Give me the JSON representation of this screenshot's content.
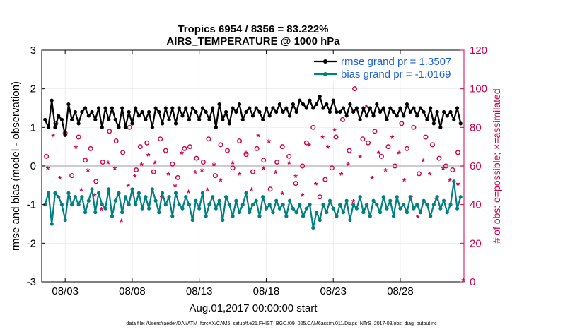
{
  "chart_data": {
    "type": "line",
    "title": "Tropics 6954 / 8356 = 83.222%",
    "subtitle": "AIRS_TEMPERATURE @ 1000 hPa",
    "ylabel_left": "rmse and bias (model - observation)",
    "ylabel_right": "# of obs: o=possible; ×=assimilated",
    "xlabel": "Aug.01,2017 00:00:00 start",
    "footnote": "data file: /Users/raeder/DAI/ATM_forcXX/CAM6_setup/f.e21.FHIST_BGC.f09_025.CAM6assim.011/Diags_NTrS_2017-08/obs_diag_output.nc",
    "ylim_left": [
      -3,
      3
    ],
    "ylim_right": [
      0,
      120
    ],
    "xlim_days": [
      0.25,
      31.75
    ],
    "yticks_left": [
      "3",
      "2",
      "1",
      "0",
      "-1",
      "-2",
      "-3"
    ],
    "yticks_right": [
      "120",
      "100",
      "80",
      "60",
      "40",
      "20",
      "0"
    ],
    "xtick_labels": [
      "08/03",
      "08/08",
      "08/13",
      "08/18",
      "08/23",
      "08/28"
    ],
    "xtick_days": [
      2,
      7,
      12,
      17,
      22,
      27
    ],
    "zero_line": 0,
    "legend": [
      {
        "label": "rmse grand pr = 1.3507",
        "color": "#000000"
      },
      {
        "label": "bias grand pr = -1.0169",
        "color": "#008080"
      }
    ],
    "colors": {
      "rmse": "#000000",
      "bias": "#008080",
      "obs": "#d1004f",
      "zero": "#bbbbbb"
    },
    "days": [
      0.5,
      0.75,
      1,
      1.25,
      1.5,
      1.75,
      2,
      2.25,
      2.5,
      2.75,
      3,
      3.25,
      3.5,
      3.75,
      4,
      4.25,
      4.5,
      4.75,
      5,
      5.25,
      5.5,
      5.75,
      6,
      6.25,
      6.5,
      6.75,
      7,
      7.25,
      7.5,
      7.75,
      8,
      8.25,
      8.5,
      8.75,
      9,
      9.25,
      9.5,
      9.75,
      10,
      10.25,
      10.5,
      10.75,
      11,
      11.25,
      11.5,
      11.75,
      12,
      12.25,
      12.5,
      12.75,
      13,
      13.25,
      13.5,
      13.75,
      14,
      14.25,
      14.5,
      14.75,
      15,
      15.25,
      15.5,
      15.75,
      16,
      16.25,
      16.5,
      16.75,
      17,
      17.25,
      17.5,
      17.75,
      18,
      18.25,
      18.5,
      18.75,
      19,
      19.25,
      19.5,
      19.75,
      20,
      20.25,
      20.5,
      20.75,
      21,
      21.25,
      21.5,
      21.75,
      22,
      22.25,
      22.5,
      22.75,
      23,
      23.25,
      23.5,
      23.75,
      24,
      24.25,
      24.5,
      24.75,
      25,
      25.25,
      25.5,
      25.75,
      26,
      26.25,
      26.5,
      26.75,
      27,
      27.25,
      27.5,
      27.75,
      28,
      28.25,
      28.5,
      28.75,
      29,
      29.25,
      29.5,
      29.75,
      30,
      30.25,
      30.5,
      30.75,
      31,
      31.25,
      31.5
    ],
    "rmse": [
      1.2,
      1.0,
      1.7,
      1.0,
      1.3,
      1.2,
      0.8,
      1.6,
      1.2,
      1.4,
      1.1,
      1.4,
      1.5,
      1.3,
      1.4,
      1.2,
      1.5,
      1.0,
      1.5,
      1.2,
      1.5,
      1.2,
      1.0,
      1.5,
      1.0,
      1.4,
      1.1,
      1.5,
      1.3,
      1.4,
      1.2,
      1.4,
      1.0,
      1.5,
      1.4,
      1.1,
      1.5,
      1.2,
      1.5,
      1.1,
      1.5,
      1.3,
      1.5,
      1.2,
      1.5,
      1.4,
      1.2,
      1.5,
      1.4,
      1.2,
      1.5,
      1.0,
      1.6,
      1.2,
      1.4,
      1.1,
      1.5,
      1.4,
      1.6,
      1.2,
      1.4,
      1.5,
      1.3,
      1.5,
      1.4,
      1.2,
      1.5,
      1.3,
      1.5,
      1.4,
      1.6,
      1.4,
      1.5,
      1.3,
      1.6,
      1.4,
      1.7,
      1.6,
      1.5,
      1.7,
      1.5,
      1.6,
      1.8,
      1.5,
      1.6,
      1.4,
      1.7,
      1.4,
      1.4,
      1.5,
      1.3,
      1.6,
      1.4,
      1.5,
      1.2,
      1.5,
      1.3,
      1.5,
      1.3,
      1.6,
      1.4,
      1.5,
      1.2,
      1.5,
      1.4,
      1.3,
      1.5,
      1.3,
      1.6,
      1.4,
      1.5,
      1.3,
      1.5,
      1.4,
      1.2,
      1.5,
      1.1,
      1.4,
      1.0,
      1.4,
      1.3,
      1.4,
      1.2,
      1.5,
      1.1,
      1.4,
      1.0
    ],
    "bias": [
      -1.0,
      -0.7,
      -1.5,
      -0.7,
      -0.8,
      -1.0,
      -1.4,
      -0.7,
      -1.0,
      -0.8,
      -1.0,
      -0.8,
      -1.2,
      -0.9,
      -0.6,
      -1.2,
      -0.7,
      -1.0,
      -1.1,
      -0.6,
      -1.3,
      -0.9,
      -0.7,
      -1.2,
      -0.8,
      -1.0,
      -0.6,
      -1.0,
      -0.7,
      -1.1,
      -0.8,
      -1.1,
      -0.6,
      -0.9,
      -1.2,
      -0.7,
      -1.0,
      -0.8,
      -1.3,
      -0.7,
      -1.0,
      -1.1,
      -0.8,
      -1.0,
      -1.4,
      -0.9,
      -1.1,
      -0.7,
      -1.3,
      -1.0,
      -0.8,
      -1.1,
      -0.9,
      -1.4,
      -0.8,
      -1.0,
      -1.3,
      -0.9,
      -1.2,
      -1.0,
      -0.7,
      -1.2,
      -1.0,
      -0.9,
      -1.3,
      -0.8,
      -1.1,
      -1.0,
      -1.2,
      -0.9,
      -1.1,
      -1.0,
      -1.3,
      -0.9,
      -1.1,
      -1.2,
      -1.0,
      -1.3,
      -1.1,
      -1.0,
      -1.6,
      -1.2,
      -1.4,
      -1.0,
      -1.2,
      -0.9,
      -1.1,
      -1.3,
      -1.0,
      -1.2,
      -0.9,
      -1.4,
      -1.0,
      -1.1,
      -0.8,
      -1.2,
      -1.0,
      -1.3,
      -0.9,
      -1.0,
      -1.2,
      -0.8,
      -1.1,
      -0.9,
      -1.3,
      -0.8,
      -1.1,
      -1.0,
      -1.2,
      -0.8,
      -1.1,
      -1.0,
      -1.2,
      -0.9,
      -1.0,
      -1.3,
      -1.0,
      -0.8,
      -1.1,
      -0.9,
      -1.2,
      -1.0,
      -0.4,
      -1.1,
      -0.8,
      -0.6,
      -0.9,
      -1.3,
      -0.5
    ],
    "obs_possible": [
      [
        0.6,
        65
      ],
      [
        1.3,
        82
      ],
      [
        2.0,
        77
      ],
      [
        2.5,
        55
      ],
      [
        3.0,
        75
      ],
      [
        3.5,
        63
      ],
      [
        3.9,
        69
      ],
      [
        4.3,
        52
      ],
      [
        4.8,
        62
      ],
      [
        5.3,
        78
      ],
      [
        5.8,
        73
      ],
      [
        6.3,
        67
      ],
      [
        6.8,
        80
      ],
      [
        7.3,
        58
      ],
      [
        7.6,
        70
      ],
      [
        8.1,
        72
      ],
      [
        8.6,
        57
      ],
      [
        9.1,
        74
      ],
      [
        9.5,
        68
      ],
      [
        10.0,
        61
      ],
      [
        10.4,
        54
      ],
      [
        10.9,
        69
      ],
      [
        11.3,
        70
      ],
      [
        11.8,
        64
      ],
      [
        12.3,
        62
      ],
      [
        12.7,
        74
      ],
      [
        13.2,
        55
      ],
      [
        13.6,
        71
      ],
      [
        14.1,
        68
      ],
      [
        14.5,
        59
      ],
      [
        15.0,
        73
      ],
      [
        15.5,
        66
      ],
      [
        16.0,
        57
      ],
      [
        16.3,
        69
      ],
      [
        16.8,
        63
      ],
      [
        17.3,
        48
      ],
      [
        17.8,
        62
      ],
      [
        18.2,
        70
      ],
      [
        18.7,
        65
      ],
      [
        19.2,
        51
      ],
      [
        19.7,
        60
      ],
      [
        20.0,
        72
      ],
      [
        20.5,
        80
      ],
      [
        21.0,
        44
      ],
      [
        21.4,
        53
      ],
      [
        21.9,
        59
      ],
      [
        22.2,
        75
      ],
      [
        22.7,
        84
      ],
      [
        23.2,
        68
      ],
      [
        23.6,
        100
      ],
      [
        24.2,
        74
      ],
      [
        24.6,
        72
      ],
      [
        25.1,
        78
      ],
      [
        25.6,
        65
      ],
      [
        26.1,
        70
      ],
      [
        26.6,
        60
      ],
      [
        27.1,
        82
      ],
      [
        27.5,
        69
      ],
      [
        28.0,
        80
      ],
      [
        28.4,
        56
      ],
      [
        28.9,
        75
      ],
      [
        29.4,
        71
      ],
      [
        29.9,
        64
      ],
      [
        30.4,
        60
      ],
      [
        30.9,
        58
      ],
      [
        31.3,
        67
      ]
    ],
    "obs_assimilated": [
      [
        0.7,
        58
      ],
      [
        1.1,
        75
      ],
      [
        1.6,
        53
      ],
      [
        2.3,
        43
      ],
      [
        2.8,
        69
      ],
      [
        3.2,
        47
      ],
      [
        3.7,
        57
      ],
      [
        4.2,
        44
      ],
      [
        4.7,
        37
      ],
      [
        5.2,
        61
      ],
      [
        5.7,
        58
      ],
      [
        6.2,
        31
      ],
      [
        6.7,
        49
      ],
      [
        7.2,
        54
      ],
      [
        7.7,
        60
      ],
      [
        8.2,
        65
      ],
      [
        8.7,
        61
      ],
      [
        9.2,
        43
      ],
      [
        9.7,
        55
      ],
      [
        10.2,
        49
      ],
      [
        10.7,
        66
      ],
      [
        11.2,
        46
      ],
      [
        11.7,
        56
      ],
      [
        12.2,
        57
      ],
      [
        12.6,
        47
      ],
      [
        13.1,
        60
      ],
      [
        13.6,
        52
      ],
      [
        14.0,
        43
      ],
      [
        14.5,
        61
      ],
      [
        15.0,
        55
      ],
      [
        15.5,
        66
      ],
      [
        15.9,
        47
      ],
      [
        16.4,
        75
      ],
      [
        16.8,
        58
      ],
      [
        17.2,
        72
      ],
      [
        17.7,
        56
      ],
      [
        18.2,
        45
      ],
      [
        18.7,
        61
      ],
      [
        19.2,
        54
      ],
      [
        19.7,
        44
      ],
      [
        20.2,
        70
      ],
      [
        20.7,
        50
      ],
      [
        21.2,
        74
      ],
      [
        21.6,
        69
      ],
      [
        22.1,
        78
      ],
      [
        22.6,
        55
      ],
      [
        23.1,
        60
      ],
      [
        23.5,
        41
      ],
      [
        24.0,
        64
      ],
      [
        24.5,
        90
      ],
      [
        24.9,
        53
      ],
      [
        25.4,
        66
      ],
      [
        25.9,
        57
      ],
      [
        26.4,
        74
      ],
      [
        26.9,
        66
      ],
      [
        27.3,
        52
      ],
      [
        27.8,
        43
      ],
      [
        28.3,
        33
      ],
      [
        28.7,
        62
      ],
      [
        29.2,
        55
      ],
      [
        29.7,
        42
      ],
      [
        30.2,
        58
      ],
      [
        30.7,
        52
      ],
      [
        31.3,
        50
      ],
      [
        31.7,
        0
      ]
    ]
  }
}
